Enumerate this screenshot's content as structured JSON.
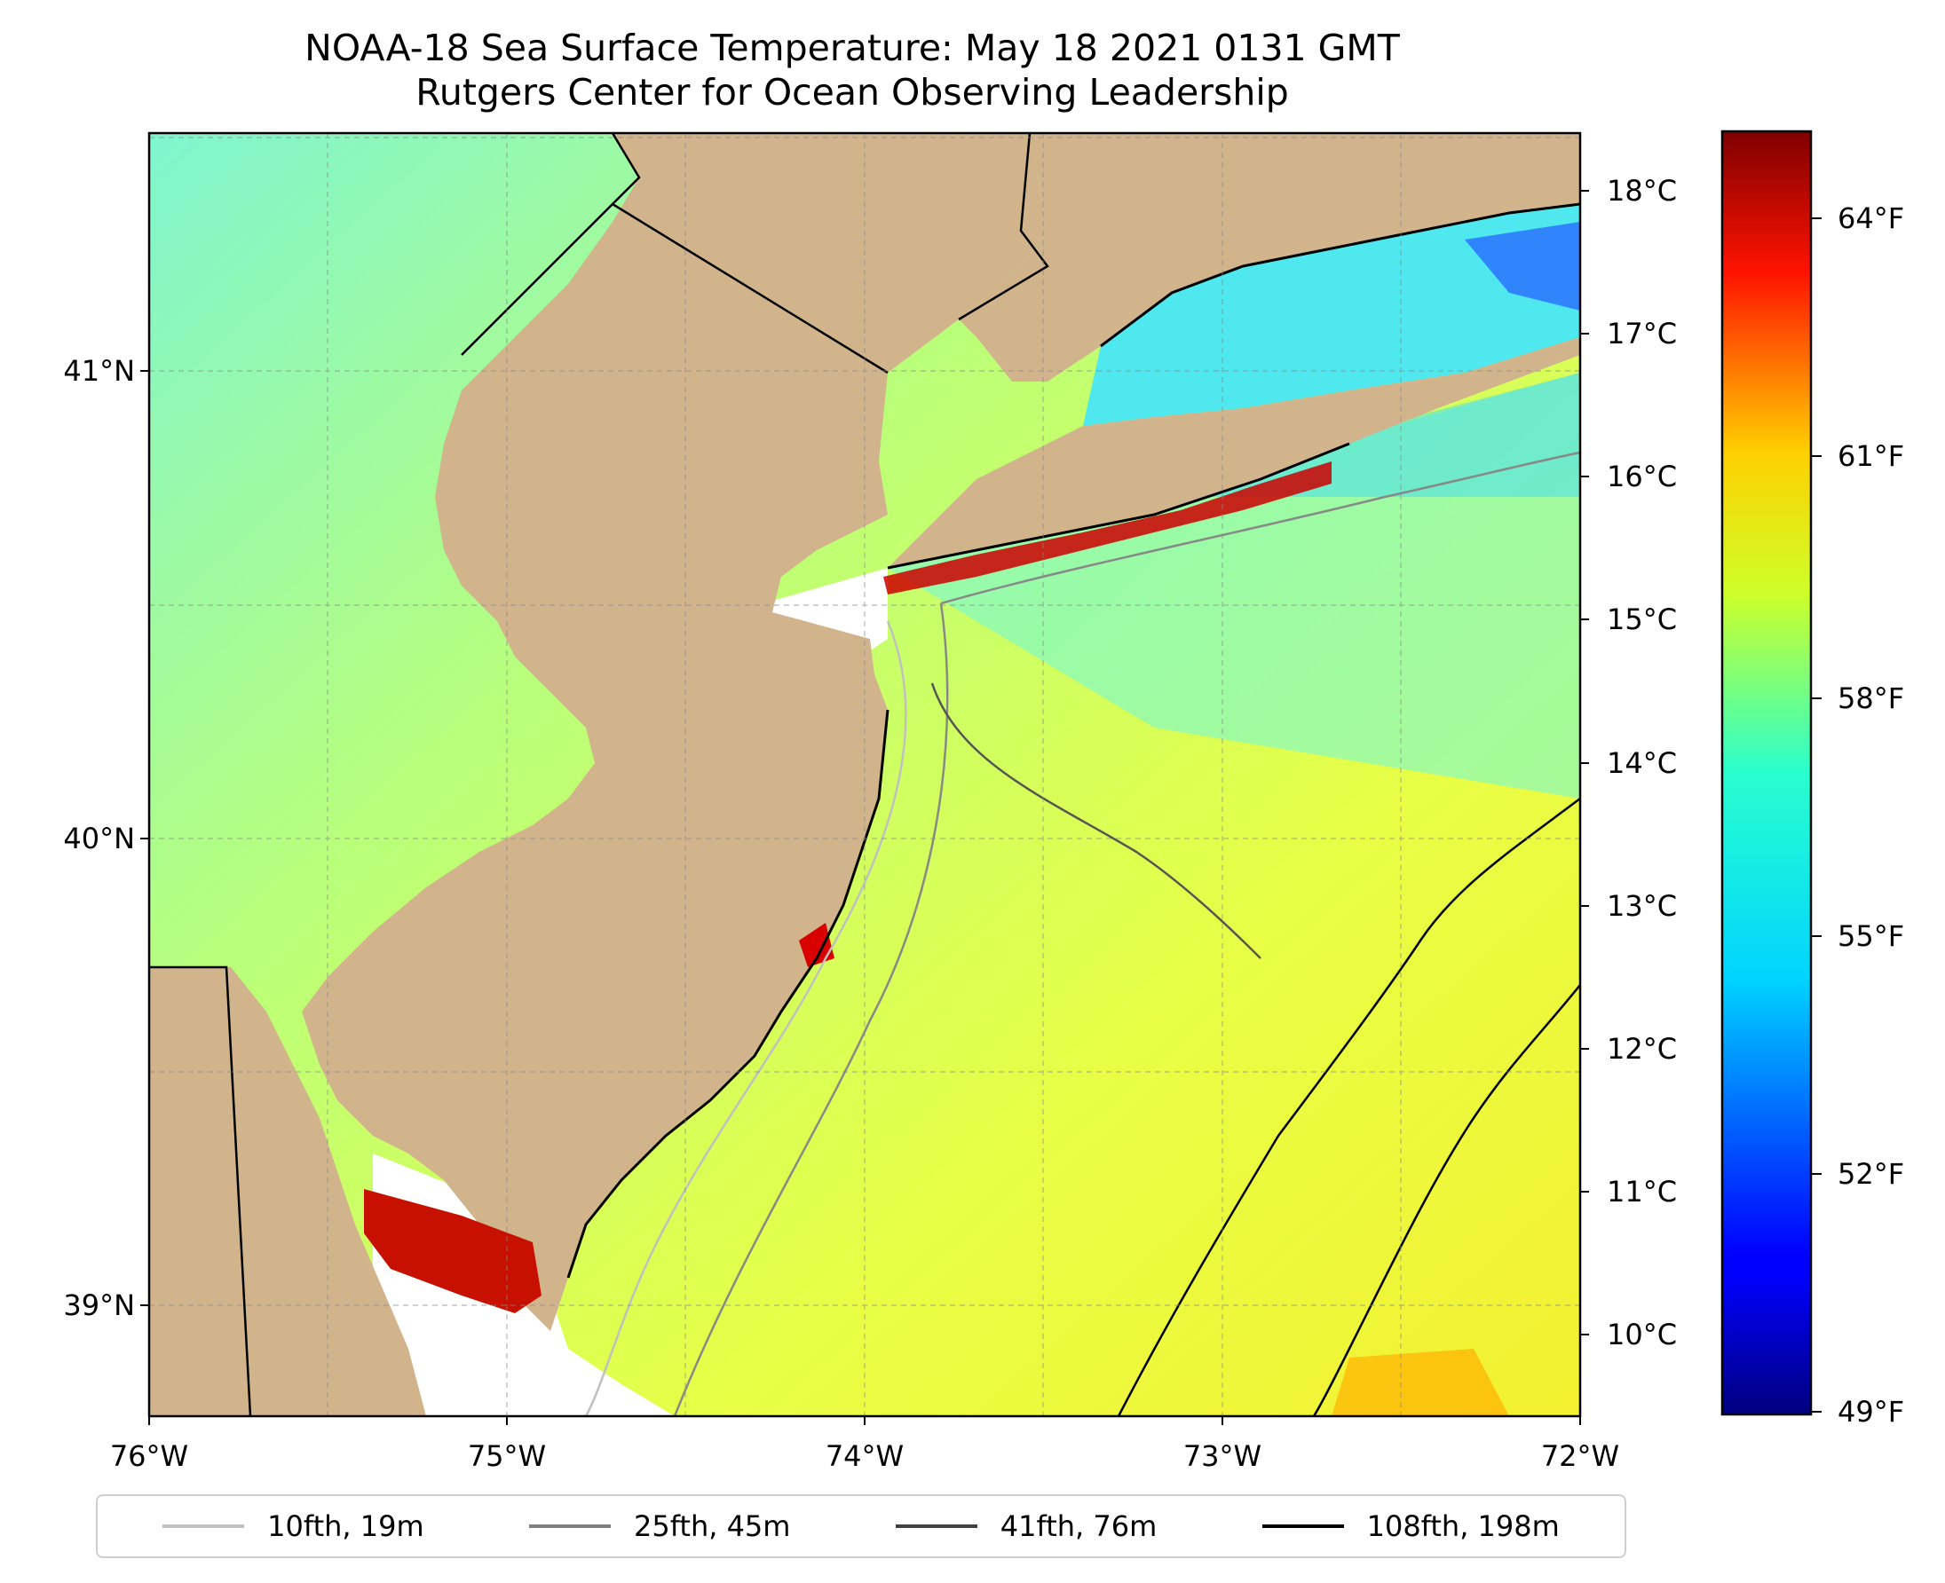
{
  "title": "NOAA-18 Sea Surface Temperature: May 18 2021 0131 GMT",
  "subtitle": "Rutgers Center for Ocean Observing Leadership",
  "map": {
    "lon_range": [
      -76,
      -72
    ],
    "lat_range": [
      38.75,
      41.5
    ],
    "lon_ticks": [
      "76°W",
      "75°W",
      "74°W",
      "73°W",
      "72°W"
    ],
    "lat_ticks": [
      "41°N",
      "40°N",
      "39°N"
    ],
    "land_color": "#d2b48c",
    "gridlines": true
  },
  "colorbar": {
    "colormap": "jet",
    "celsius_ticks": [
      "18°C",
      "17°C",
      "16°C",
      "15°C",
      "14°C",
      "13°C",
      "12°C",
      "11°C",
      "10°C"
    ],
    "fahrenheit_ticks": [
      "64°F",
      "61°F",
      "58°F",
      "55°F",
      "52°F",
      "49°F"
    ],
    "range_f": [
      49,
      65
    ]
  },
  "legend": [
    {
      "label": "10fth, 19m",
      "color": "#c0c0c0"
    },
    {
      "label": "25fth, 45m",
      "color": "#808080"
    },
    {
      "label": "41fth, 76m",
      "color": "#404040"
    },
    {
      "label": "108fth, 198m",
      "color": "#000000"
    }
  ]
}
